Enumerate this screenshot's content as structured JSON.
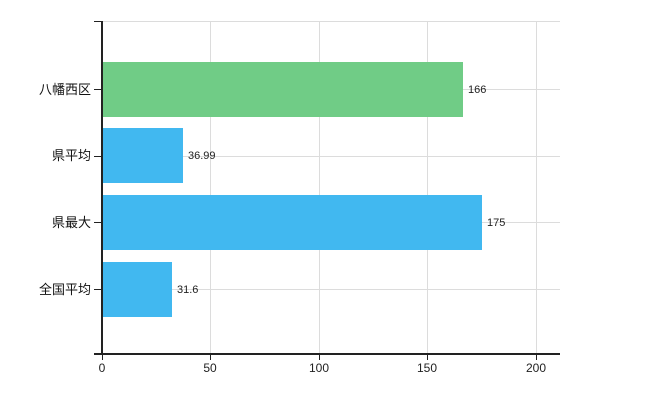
{
  "chart_data": {
    "type": "bar",
    "orientation": "horizontal",
    "title": "",
    "categories": [
      "八幡西区",
      "県平均",
      "県最大",
      "全国平均"
    ],
    "values": [
      166,
      36.99,
      175,
      31.6
    ],
    "value_labels": [
      "166",
      "36.99",
      "175",
      "31.6"
    ],
    "bar_colors": [
      "#70cc86",
      "#41b8f0",
      "#41b8f0",
      "#41b8f0"
    ],
    "x_ticks": [
      "0",
      "50",
      "100",
      "150",
      "200"
    ],
    "x_axis_range": [
      0,
      211
    ],
    "grid": true,
    "legend_position": "none",
    "colors": {
      "grid": "#dcdcdc",
      "axis": "#222222",
      "text": "#222222",
      "background": "#ffffff"
    }
  }
}
